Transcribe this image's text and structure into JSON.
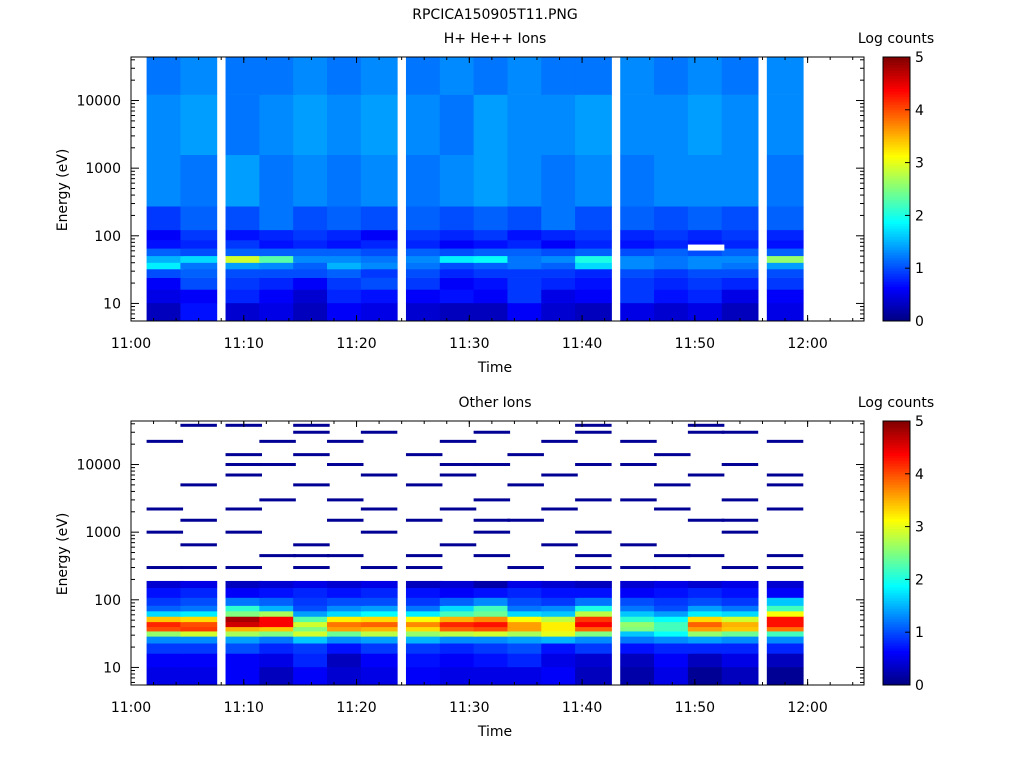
{
  "page_title": "RPCICA150905T11.PNG",
  "chart_data": [
    {
      "type": "heatmap",
      "title": "H+ He++ Ions",
      "xlabel": "Time",
      "ylabel": "Energy (eV)",
      "x_ticks": [
        "11:00",
        "11:10",
        "11:20",
        "11:30",
        "11:40",
        "11:50",
        "12:00"
      ],
      "xlim": [
        "11:00",
        "12:05"
      ],
      "y_scale": "log",
      "y_ticks": [
        10,
        100,
        1000,
        10000
      ],
      "ylim": [
        5.5,
        44000
      ],
      "colorbar": {
        "label": "Log counts",
        "range": [
          0,
          5
        ],
        "ticks": [
          0,
          1,
          2,
          3,
          4,
          5
        ],
        "colormap": "jet"
      },
      "time_columns": [
        "11:03",
        "11:06",
        "11:10",
        "11:13",
        "11:16",
        "11:19",
        "11:22",
        "11:26",
        "11:29",
        "11:32",
        "11:35",
        "11:38",
        "11:41",
        "11:45",
        "11:48",
        "11:51",
        "11:54",
        "11:58"
      ],
      "missing_cells": [
        {
          "time": "11:51",
          "energy_eV": 67
        }
      ],
      "energy_band_levels": [
        {
          "energy_eV": 8,
          "values": [
            0.3,
            0.7,
            0.4,
            0.5,
            0.3,
            0.6,
            0.5,
            0.4,
            0.3,
            0.3,
            0.6,
            0.4,
            0.3,
            0.5,
            0.4,
            0.5,
            0.3,
            0.5
          ]
        },
        {
          "energy_eV": 13,
          "values": [
            0.5,
            0.6,
            0.8,
            0.6,
            0.4,
            0.8,
            0.7,
            0.6,
            0.7,
            0.6,
            0.9,
            0.5,
            0.6,
            0.9,
            0.7,
            0.8,
            0.5,
            0.6
          ]
        },
        {
          "energy_eV": 20,
          "values": [
            0.6,
            1.0,
            0.9,
            0.8,
            0.6,
            0.9,
            1.0,
            0.9,
            0.6,
            0.7,
            0.9,
            0.8,
            0.7,
            0.9,
            0.8,
            0.9,
            0.8,
            0.9
          ]
        },
        {
          "energy_eV": 29,
          "values": [
            1.0,
            1.1,
            1.0,
            1.0,
            1.0,
            1.1,
            0.9,
            1.0,
            0.8,
            0.9,
            0.9,
            0.9,
            0.8,
            1.0,
            0.9,
            1.0,
            1.0,
            1.0
          ]
        },
        {
          "energy_eV": 36,
          "values": [
            1.8,
            1.2,
            1.4,
            1.3,
            1.1,
            1.5,
            1.3,
            1.2,
            1.0,
            1.1,
            1.2,
            1.1,
            1.7,
            1.3,
            1.2,
            1.3,
            1.2,
            1.4
          ]
        },
        {
          "energy_eV": 45,
          "values": [
            1.5,
            1.7,
            2.9,
            2.3,
            1.3,
            1.3,
            1.2,
            1.3,
            1.8,
            1.9,
            1.2,
            1.3,
            2.0,
            1.3,
            1.2,
            1.3,
            1.3,
            2.6
          ]
        },
        {
          "energy_eV": 57,
          "values": [
            1.1,
            1.0,
            1.1,
            1.1,
            1.1,
            1.1,
            1.0,
            1.1,
            1.0,
            1.1,
            1.1,
            1.0,
            1.1,
            1.0,
            1.1,
            1.0,
            1.1,
            1.1
          ]
        },
        {
          "energy_eV": 75,
          "values": [
            0.7,
            0.8,
            0.9,
            0.7,
            0.8,
            0.7,
            0.8,
            0.8,
            0.6,
            0.7,
            0.8,
            0.6,
            0.8,
            0.7,
            0.8,
            0.7,
            0.8,
            0.7
          ]
        },
        {
          "energy_eV": 100,
          "values": [
            0.6,
            0.9,
            0.7,
            0.8,
            0.9,
            0.8,
            0.6,
            0.9,
            0.8,
            0.9,
            0.7,
            0.8,
            0.9,
            0.8,
            0.9,
            0.8,
            0.9,
            0.8
          ]
        },
        {
          "energy_eV": 150,
          "values": [
            0.9,
            1.1,
            1.0,
            1.2,
            1.0,
            1.1,
            1.0,
            1.1,
            1.0,
            1.1,
            1.0,
            1.2,
            1.0,
            1.1,
            1.0,
            1.1,
            1.0,
            1.1
          ]
        },
        {
          "energy_eV": 500,
          "values": [
            1.3,
            1.2,
            1.4,
            1.2,
            1.3,
            1.2,
            1.3,
            1.2,
            1.3,
            1.4,
            1.3,
            1.2,
            1.3,
            1.2,
            1.3,
            1.3,
            1.3,
            1.2
          ]
        },
        {
          "energy_eV": 5000,
          "values": [
            1.3,
            1.4,
            1.2,
            1.3,
            1.4,
            1.3,
            1.4,
            1.3,
            1.2,
            1.4,
            1.3,
            1.3,
            1.4,
            1.3,
            1.3,
            1.4,
            1.3,
            1.3
          ]
        },
        {
          "energy_eV": 30000,
          "values": [
            1.2,
            1.3,
            1.2,
            1.2,
            1.3,
            1.2,
            1.3,
            1.2,
            1.3,
            1.2,
            1.3,
            1.2,
            1.2,
            1.3,
            1.2,
            1.3,
            1.2,
            1.3
          ]
        }
      ]
    },
    {
      "type": "heatmap",
      "title": "Other Ions",
      "xlabel": "Time",
      "ylabel": "Energy (eV)",
      "x_ticks": [
        "11:00",
        "11:10",
        "11:20",
        "11:30",
        "11:40",
        "11:50",
        "12:00"
      ],
      "xlim": [
        "11:00",
        "12:05"
      ],
      "y_scale": "log",
      "y_ticks": [
        10,
        100,
        1000,
        10000
      ],
      "ylim": [
        5.5,
        44000
      ],
      "colorbar": {
        "label": "Log counts",
        "range": [
          0,
          5
        ],
        "ticks": [
          0,
          1,
          2,
          3,
          4,
          5
        ],
        "colormap": "jet"
      },
      "time_columns": [
        "11:03",
        "11:06",
        "11:10",
        "11:13",
        "11:16",
        "11:19",
        "11:22",
        "11:26",
        "11:29",
        "11:32",
        "11:35",
        "11:38",
        "11:41",
        "11:45",
        "11:48",
        "11:51",
        "11:54",
        "11:58"
      ],
      "background_above_energy_eV": 190,
      "energy_band_levels": [
        {
          "energy_eV": 8,
          "values": [
            0.5,
            0.5,
            0.6,
            0.3,
            0.6,
            0.4,
            0.5,
            0.6,
            0.5,
            0.5,
            0.5,
            0.6,
            0.3,
            0.2,
            0.5,
            0.1,
            0.3,
            0.1
          ]
        },
        {
          "energy_eV": 13,
          "values": [
            0.6,
            0.6,
            0.6,
            0.5,
            0.8,
            0.3,
            0.6,
            0.7,
            0.6,
            0.7,
            0.8,
            0.5,
            0.4,
            0.3,
            0.6,
            0.3,
            0.5,
            0.3
          ]
        },
        {
          "energy_eV": 20,
          "values": [
            0.9,
            0.9,
            1.0,
            0.8,
            0.9,
            0.7,
            0.9,
            0.9,
            0.8,
            0.9,
            1.0,
            0.7,
            0.9,
            0.7,
            0.8,
            0.8,
            0.8,
            0.8
          ]
        },
        {
          "energy_eV": 26,
          "values": [
            1.3,
            1.3,
            1.4,
            1.2,
            1.6,
            1.3,
            1.4,
            1.5,
            1.3,
            1.3,
            1.4,
            1.5,
            1.3,
            1.2,
            1.3,
            1.4,
            1.3,
            1.3
          ]
        },
        {
          "energy_eV": 32,
          "values": [
            2.6,
            2.9,
            2.7,
            2.5,
            2.9,
            2.4,
            2.8,
            2.6,
            2.8,
            2.9,
            2.7,
            3.0,
            2.5,
            1.6,
            1.9,
            2.6,
            2.4,
            2.2
          ]
        },
        {
          "energy_eV": 37,
          "values": [
            4.0,
            4.1,
            3.5,
            3.4,
            2.5,
            3.6,
            3.5,
            3.3,
            3.9,
            4.0,
            3.6,
            3.2,
            3.9,
            2.5,
            2.2,
            3.6,
            3.4,
            3.8
          ]
        },
        {
          "energy_eV": 43,
          "values": [
            4.2,
            4.0,
            4.6,
            4.4,
            2.9,
            3.8,
            3.9,
            3.7,
            4.2,
            4.3,
            3.6,
            3.2,
            4.4,
            2.6,
            2.2,
            3.9,
            3.5,
            4.3
          ]
        },
        {
          "energy_eV": 52,
          "values": [
            3.4,
            3.3,
            4.8,
            4.4,
            2.3,
            3.2,
            3.3,
            3.1,
            3.5,
            3.7,
            3.1,
            2.8,
            4.1,
            2.1,
            1.9,
            3.3,
            2.9,
            4.3
          ]
        },
        {
          "energy_eV": 62,
          "values": [
            1.7,
            1.8,
            2.5,
            2.7,
            1.4,
            1.7,
            1.9,
            1.8,
            2.2,
            2.4,
            1.7,
            1.6,
            2.8,
            1.6,
            1.4,
            1.8,
            1.7,
            3.1
          ]
        },
        {
          "energy_eV": 75,
          "values": [
            1.1,
            1.2,
            2.1,
            1.5,
            1.0,
            1.3,
            1.4,
            1.2,
            1.7,
            2.2,
            1.2,
            1.3,
            2.0,
            1.2,
            1.0,
            1.4,
            1.2,
            2.2
          ]
        },
        {
          "energy_eV": 90,
          "values": [
            0.9,
            1.0,
            1.2,
            1.1,
            0.9,
            1.0,
            1.0,
            0.9,
            1.1,
            1.3,
            1.0,
            0.9,
            1.2,
            1.0,
            0.9,
            1.0,
            0.9,
            1.6
          ]
        },
        {
          "energy_eV": 130,
          "values": [
            0.7,
            0.8,
            0.6,
            0.7,
            0.8,
            0.7,
            0.8,
            0.7,
            0.6,
            0.7,
            0.8,
            0.7,
            0.7,
            0.6,
            0.7,
            0.8,
            0.7,
            0.6
          ]
        },
        {
          "energy_eV": 175,
          "values": [
            0.4,
            0.5,
            0.3,
            0.4,
            0.5,
            0.4,
            0.5,
            0.3,
            0.4,
            0.2,
            0.5,
            0.4,
            0.3,
            0.4,
            0.5,
            0.4,
            0.5,
            0.4
          ]
        }
      ],
      "sparse_traces": [
        {
          "energy_eV": 300,
          "count_level": 0.1,
          "time_columns": [
            "11:03",
            "11:06",
            "11:10",
            "11:16",
            "11:22",
            "11:26",
            "11:35",
            "11:41",
            "11:45",
            "11:48",
            "11:54",
            "11:58"
          ]
        },
        {
          "energy_eV": 450,
          "count_level": 0.1,
          "time_columns": [
            "11:13",
            "11:16",
            "11:19",
            "11:26",
            "11:32",
            "11:41",
            "11:48",
            "11:51",
            "11:58"
          ]
        },
        {
          "energy_eV": 650,
          "count_level": 0.1,
          "time_columns": [
            "11:06",
            "11:16",
            "11:29",
            "11:38",
            "11:45"
          ]
        },
        {
          "energy_eV": 1000,
          "count_level": 0.1,
          "time_columns": [
            "11:03",
            "11:10",
            "11:22",
            "11:32",
            "11:41",
            "11:54"
          ]
        },
        {
          "energy_eV": 1500,
          "count_level": 0.1,
          "time_columns": [
            "11:06",
            "11:19",
            "11:26",
            "11:32",
            "11:35",
            "11:51",
            "11:54"
          ]
        },
        {
          "energy_eV": 2200,
          "count_level": 0.1,
          "time_columns": [
            "11:03",
            "11:10",
            "11:22",
            "11:29",
            "11:38",
            "11:48",
            "11:58"
          ]
        },
        {
          "energy_eV": 3000,
          "count_level": 0.1,
          "time_columns": [
            "11:13",
            "11:19",
            "11:32",
            "11:41",
            "11:45",
            "11:54"
          ]
        },
        {
          "energy_eV": 5000,
          "count_level": 0.1,
          "time_columns": [
            "11:06",
            "11:16",
            "11:26",
            "11:35",
            "11:48",
            "11:58"
          ]
        },
        {
          "energy_eV": 7000,
          "count_level": 0.1,
          "time_columns": [
            "11:10",
            "11:22",
            "11:29",
            "11:38",
            "11:51",
            "11:58"
          ]
        },
        {
          "energy_eV": 10000,
          "count_level": 0.1,
          "time_columns": [
            "11:10",
            "11:13",
            "11:19",
            "11:29",
            "11:32",
            "11:41",
            "11:45",
            "11:54"
          ]
        },
        {
          "energy_eV": 14000,
          "count_level": 0.1,
          "time_columns": [
            "11:10",
            "11:16",
            "11:26",
            "11:35",
            "11:48"
          ]
        },
        {
          "energy_eV": 22000,
          "count_level": 0.1,
          "time_columns": [
            "11:03",
            "11:13",
            "11:19",
            "11:29",
            "11:38",
            "11:45",
            "11:58"
          ]
        },
        {
          "energy_eV": 30000,
          "count_level": 0.1,
          "time_columns": [
            "11:16",
            "11:22",
            "11:32",
            "11:41",
            "11:51",
            "11:54"
          ]
        },
        {
          "energy_eV": 38000,
          "count_level": 0.1,
          "time_columns": [
            "11:06",
            "11:10",
            "11:16",
            "11:41",
            "11:51"
          ]
        }
      ]
    }
  ]
}
